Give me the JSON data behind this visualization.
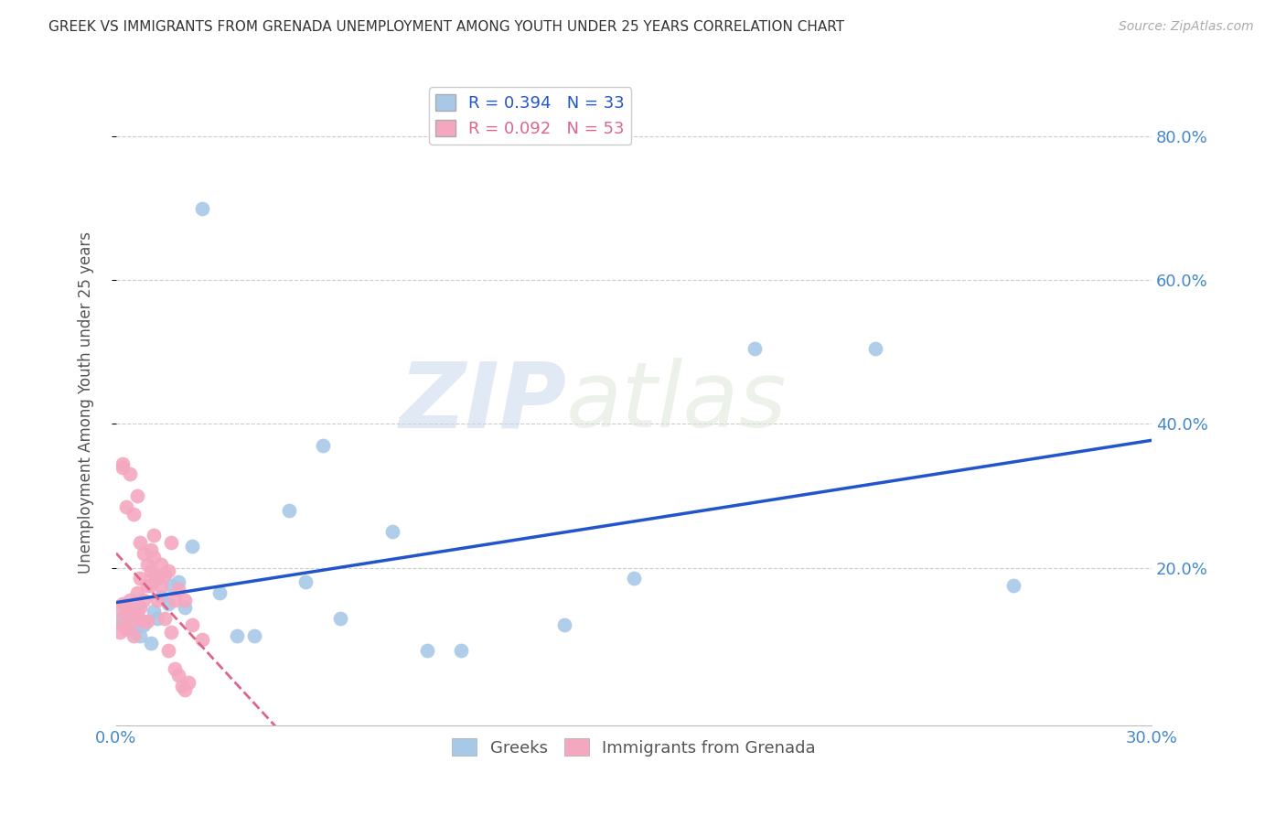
{
  "title": "GREEK VS IMMIGRANTS FROM GRENADA UNEMPLOYMENT AMONG YOUTH UNDER 25 YEARS CORRELATION CHART",
  "source": "Source: ZipAtlas.com",
  "ylabel": "Unemployment Among Youth under 25 years",
  "xlim": [
    0.0,
    0.3
  ],
  "ylim": [
    -0.02,
    0.88
  ],
  "xticks": [
    0.0,
    0.3
  ],
  "yticks": [
    0.2,
    0.4,
    0.6,
    0.8
  ],
  "legend_entry1": {
    "r": "0.394",
    "n": "33"
  },
  "legend_entry2": {
    "r": "0.092",
    "n": "53"
  },
  "watermark_zip": "ZIP",
  "watermark_atlas": "atlas",
  "blue_color": "#2255cc",
  "pink_color": "#dd6688",
  "blue_scatter_color": "#a8c8e8",
  "pink_scatter_color": "#f4a8c0",
  "grid_color": "#cccccc",
  "tick_label_color": "#4488cc",
  "greek_x": [
    0.001,
    0.002,
    0.003,
    0.004,
    0.005,
    0.006,
    0.007,
    0.008,
    0.01,
    0.011,
    0.012,
    0.013,
    0.015,
    0.016,
    0.018,
    0.02,
    0.022,
    0.025,
    0.03,
    0.035,
    0.04,
    0.05,
    0.055,
    0.06,
    0.065,
    0.08,
    0.09,
    0.1,
    0.13,
    0.15,
    0.185,
    0.22,
    0.26
  ],
  "greek_y": [
    0.13,
    0.12,
    0.115,
    0.125,
    0.11,
    0.14,
    0.105,
    0.12,
    0.095,
    0.14,
    0.13,
    0.16,
    0.15,
    0.175,
    0.18,
    0.145,
    0.23,
    0.7,
    0.165,
    0.105,
    0.105,
    0.28,
    0.18,
    0.37,
    0.13,
    0.25,
    0.085,
    0.085,
    0.12,
    0.185,
    0.505,
    0.505,
    0.175
  ],
  "grenada_x": [
    0.001,
    0.001,
    0.002,
    0.002,
    0.003,
    0.003,
    0.004,
    0.004,
    0.005,
    0.005,
    0.006,
    0.006,
    0.007,
    0.007,
    0.008,
    0.008,
    0.009,
    0.009,
    0.01,
    0.01,
    0.011,
    0.011,
    0.012,
    0.013,
    0.014,
    0.015,
    0.016,
    0.017,
    0.018,
    0.02,
    0.022,
    0.025,
    0.002,
    0.003,
    0.004,
    0.005,
    0.006,
    0.007,
    0.008,
    0.009,
    0.01,
    0.011,
    0.012,
    0.013,
    0.014,
    0.015,
    0.016,
    0.017,
    0.018,
    0.019,
    0.02,
    0.021,
    0.002
  ],
  "grenada_y": [
    0.14,
    0.11,
    0.12,
    0.15,
    0.115,
    0.145,
    0.135,
    0.155,
    0.125,
    0.105,
    0.135,
    0.165,
    0.145,
    0.185,
    0.155,
    0.125,
    0.205,
    0.175,
    0.225,
    0.195,
    0.215,
    0.245,
    0.185,
    0.205,
    0.19,
    0.195,
    0.235,
    0.155,
    0.17,
    0.155,
    0.12,
    0.1,
    0.345,
    0.285,
    0.33,
    0.275,
    0.3,
    0.235,
    0.22,
    0.125,
    0.175,
    0.19,
    0.155,
    0.175,
    0.13,
    0.085,
    0.11,
    0.06,
    0.05,
    0.035,
    0.03,
    0.04,
    0.34
  ]
}
